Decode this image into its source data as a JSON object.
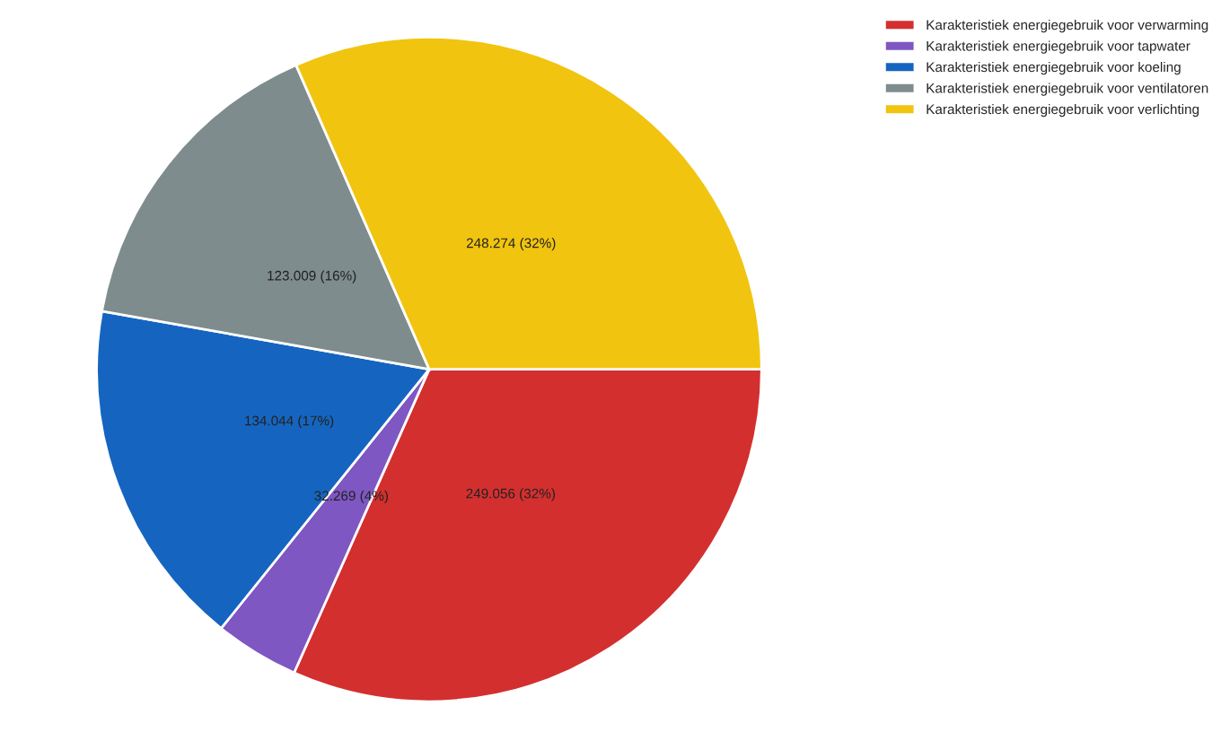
{
  "chart_data": {
    "type": "pie",
    "categories": [
      "Karakteristiek energiegebruik voor verwarming",
      "Karakteristiek energiegebruik voor tapwater",
      "Karakteristiek energiegebruik voor koeling",
      "Karakteristiek energiegebruik voor ventilatoren",
      "Karakteristiek energiegebruik voor verlichting"
    ],
    "values": [
      249056,
      32269,
      134044,
      123009,
      248274
    ],
    "value_labels": [
      "249.056 (32%)",
      "32.269 (4%)",
      "134.044 (17%)",
      "123.009 (16%)",
      "248.274 (32%)"
    ],
    "colors": [
      "#d32f2f",
      "#7e57c2",
      "#1565c0",
      "#7f8c8d",
      "#f1c40f"
    ],
    "legend": "top right"
  }
}
